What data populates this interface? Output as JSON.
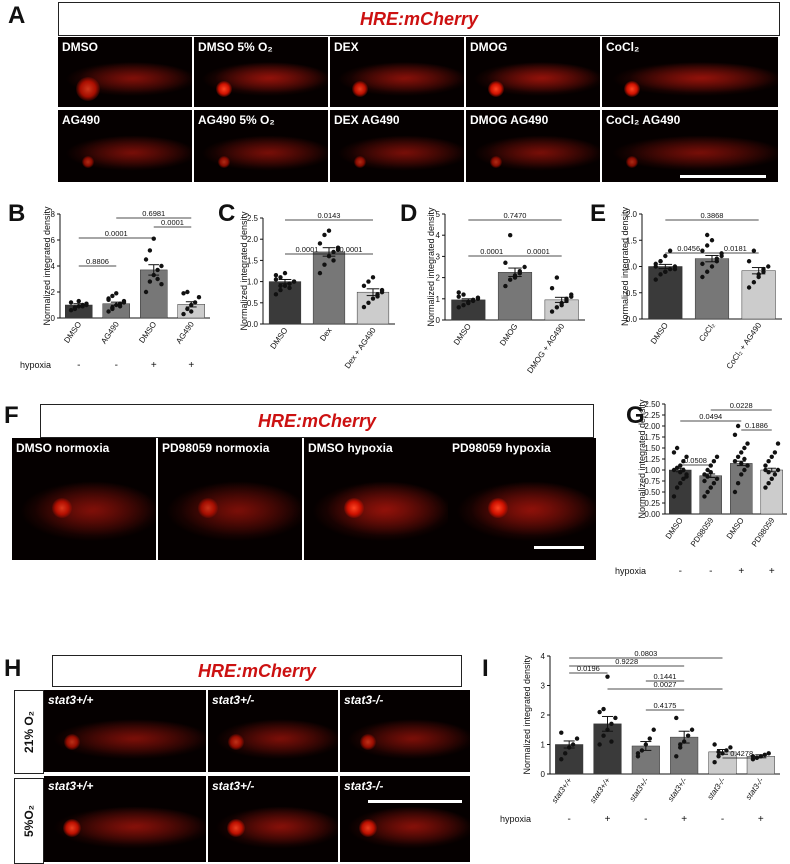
{
  "panel_letters": {
    "A": "A",
    "B": "B",
    "C": "C",
    "D": "D",
    "E": "E",
    "F": "F",
    "G": "G",
    "H": "H",
    "I": "I"
  },
  "reporter_title": "HRE:mCherry",
  "panel_A": {
    "row1": [
      "DMSO",
      "DMSO 5% O₂",
      "DEX",
      "DMOG",
      "CoCl₂"
    ],
    "row2": [
      "AG490",
      "AG490 5% O₂",
      "DEX AG490",
      "DMOG AG490",
      "CoCl₂ AG490"
    ]
  },
  "panel_F": {
    "labels": [
      "DMSO normoxia",
      "PD98059 normoxia",
      "DMSO hypoxia",
      "PD98059 hypoxia"
    ]
  },
  "panel_H": {
    "row_labels": [
      "21% O₂",
      "5%O₂"
    ],
    "genotypes": [
      "stat3+/+",
      "stat3+/-",
      "stat3-/-"
    ]
  },
  "hypoxia_label": "hypoxia",
  "ylabel": "Normalized integrated density",
  "chart_data": [
    {
      "id": "B",
      "type": "bar",
      "categories": [
        "DMSO",
        "AG490",
        "DMSO",
        "AG490"
      ],
      "hypoxia": [
        "-",
        "-",
        "+",
        "+"
      ],
      "values": [
        1.0,
        1.1,
        3.7,
        1.05
      ],
      "errors": [
        0.1,
        0.12,
        0.4,
        0.2
      ],
      "colors": [
        "#3a3a3a",
        "#777777",
        "#777777",
        "#cccccc"
      ],
      "ylim": [
        0,
        8
      ],
      "yticks": [
        0,
        2,
        4,
        6,
        8
      ],
      "points": [
        [
          0.6,
          0.8,
          0.9,
          1.0,
          1.1,
          1.2,
          0.7,
          1.3,
          0.9,
          1.0
        ],
        [
          0.5,
          0.8,
          1.0,
          1.1,
          1.3,
          1.5,
          1.7,
          1.9,
          0.9,
          1.2,
          1.4,
          0.7
        ],
        [
          2.0,
          2.8,
          3.3,
          3.7,
          4.0,
          4.5,
          5.2,
          6.1,
          3.0,
          2.6
        ],
        [
          0.3,
          0.7,
          1.0,
          1.2,
          1.6,
          1.9,
          2.0,
          0.5
        ]
      ],
      "comparisons": [
        {
          "a": 0,
          "b": 1,
          "label": "0.8806"
        },
        {
          "a": 0,
          "b": 2,
          "label": "0.0001"
        },
        {
          "a": 2,
          "b": 3,
          "label": "0.0001"
        },
        {
          "a": 1,
          "b": 3,
          "label": "0.6981"
        }
      ]
    },
    {
      "id": "C",
      "type": "bar",
      "categories": [
        "DMSO",
        "Dex",
        "Dex + AG490"
      ],
      "values": [
        1.0,
        1.7,
        0.75
      ],
      "errors": [
        0.05,
        0.1,
        0.08
      ],
      "colors": [
        "#3a3a3a",
        "#777777",
        "#cccccc"
      ],
      "ylim": [
        0,
        2.5
      ],
      "yticks": [
        0.0,
        0.5,
        1.0,
        1.5,
        2.0,
        2.5
      ],
      "points": [
        [
          0.7,
          0.8,
          0.9,
          0.95,
          1.0,
          1.05,
          1.1,
          1.2,
          0.85,
          1.0,
          1.15,
          0.9
        ],
        [
          1.2,
          1.4,
          1.6,
          1.7,
          1.8,
          1.9,
          2.1,
          2.2,
          1.5,
          1.75
        ],
        [
          0.4,
          0.5,
          0.6,
          0.7,
          0.8,
          0.9,
          1.0,
          1.1,
          0.65,
          0.75
        ]
      ],
      "comparisons": [
        {
          "a": 0,
          "b": 1,
          "label": "0.0001"
        },
        {
          "a": 1,
          "b": 2,
          "label": "0.0001"
        },
        {
          "a": 0,
          "b": 2,
          "label": "0.0143"
        }
      ]
    },
    {
      "id": "D",
      "type": "bar",
      "categories": [
        "DMSO",
        "DMOG",
        "DMOG + AG490"
      ],
      "values": [
        0.95,
        2.25,
        0.95
      ],
      "errors": [
        0.05,
        0.2,
        0.12
      ],
      "colors": [
        "#3a3a3a",
        "#777777",
        "#cccccc"
      ],
      "ylim": [
        0,
        5
      ],
      "yticks": [
        0,
        1,
        2,
        3,
        4,
        5
      ],
      "points": [
        [
          0.6,
          0.7,
          0.8,
          0.9,
          1.0,
          1.1,
          1.2,
          0.85,
          0.95,
          1.05,
          1.3
        ],
        [
          1.6,
          1.9,
          2.1,
          2.3,
          2.5,
          2.7,
          4.0,
          2.0,
          2.2
        ],
        [
          0.4,
          0.6,
          0.8,
          1.0,
          1.2,
          1.5,
          2.0,
          0.7,
          0.9,
          1.1
        ]
      ],
      "comparisons": [
        {
          "a": 0,
          "b": 1,
          "label": "0.0001"
        },
        {
          "a": 1,
          "b": 2,
          "label": "0.0001"
        },
        {
          "a": 0,
          "b": 2,
          "label": "0.7470"
        }
      ]
    },
    {
      "id": "E",
      "type": "bar",
      "categories": [
        "DMSO",
        "CoCl₂",
        "CoCl₂ + AG490"
      ],
      "values": [
        1.0,
        1.15,
        0.92
      ],
      "errors": [
        0.04,
        0.06,
        0.06
      ],
      "colors": [
        "#3a3a3a",
        "#777777",
        "#cccccc"
      ],
      "ylim": [
        0,
        2.0
      ],
      "yticks": [
        0.0,
        0.5,
        1.0,
        1.5,
        2.0
      ],
      "points": [
        [
          0.75,
          0.85,
          0.9,
          0.95,
          1.0,
          1.05,
          1.1,
          1.2,
          1.3,
          0.95,
          1.0,
          1.1,
          0.9
        ],
        [
          0.8,
          0.9,
          1.0,
          1.1,
          1.2,
          1.3,
          1.4,
          1.5,
          1.15,
          1.25,
          1.05,
          1.6
        ],
        [
          0.6,
          0.7,
          0.8,
          0.9,
          1.0,
          1.1,
          1.3,
          0.85,
          0.95
        ]
      ],
      "comparisons": [
        {
          "a": 0,
          "b": 1,
          "label": "0.0456"
        },
        {
          "a": 1,
          "b": 2,
          "label": "0.0181"
        },
        {
          "a": 0,
          "b": 2,
          "label": "0.3868"
        }
      ]
    },
    {
      "id": "G",
      "type": "bar",
      "categories": [
        "DMSO",
        "PD98059",
        "DMSO",
        "PD98059"
      ],
      "hypoxia": [
        "-",
        "-",
        "+",
        "+"
      ],
      "values": [
        1.0,
        0.87,
        1.15,
        1.0
      ],
      "errors": [
        0.04,
        0.04,
        0.05,
        0.04
      ],
      "colors": [
        "#3a3a3a",
        "#777777",
        "#777777",
        "#cccccc"
      ],
      "ylim": [
        0,
        2.5
      ],
      "yticks": [
        0.0,
        0.25,
        0.5,
        0.75,
        1.0,
        1.25,
        1.5,
        1.75,
        2.0,
        2.25,
        2.5
      ],
      "ytick_labels": [
        "0.00",
        "0.25",
        "0.50",
        "0.75",
        "1.00",
        "1.25",
        "1.50",
        "1.75",
        "2.00",
        "2.25",
        "2.50"
      ],
      "points": [
        [
          0.4,
          0.6,
          0.7,
          0.8,
          0.9,
          1.0,
          1.05,
          1.1,
          1.2,
          1.3,
          1.4,
          1.5,
          0.95,
          1.0,
          0.85
        ],
        [
          0.4,
          0.5,
          0.6,
          0.7,
          0.8,
          0.9,
          1.0,
          1.1,
          1.2,
          1.3,
          0.75,
          0.85,
          0.95
        ],
        [
          0.5,
          0.7,
          0.9,
          1.0,
          1.1,
          1.2,
          1.3,
          1.4,
          1.5,
          1.6,
          1.8,
          2.0,
          1.15,
          1.25
        ],
        [
          0.6,
          0.7,
          0.8,
          0.9,
          1.0,
          1.1,
          1.2,
          1.3,
          1.4,
          1.6,
          1.0,
          0.95
        ]
      ],
      "comparisons": [
        {
          "a": 0,
          "b": 1,
          "label": "0.0508"
        },
        {
          "a": 2,
          "b": 3,
          "label": "0.1886"
        },
        {
          "a": 0,
          "b": 2,
          "label": "0.0494"
        },
        {
          "a": 1,
          "b": 3,
          "label": "0.0228"
        }
      ]
    },
    {
      "id": "I",
      "type": "bar",
      "categories": [
        "stat3+/+",
        "stat3+/+",
        "stat3+/-",
        "stat3+/-",
        "stat3-/-",
        "stat3-/-"
      ],
      "hypoxia": [
        "-",
        "+",
        "-",
        "+",
        "-",
        "+"
      ],
      "values": [
        1.0,
        1.7,
        0.95,
        1.25,
        0.75,
        0.6
      ],
      "errors": [
        0.12,
        0.25,
        0.15,
        0.2,
        0.08,
        0.05
      ],
      "colors": [
        "#3a3a3a",
        "#3a3a3a",
        "#777777",
        "#777777",
        "#cccccc",
        "#cccccc"
      ],
      "ylim": [
        0,
        4
      ],
      "yticks": [
        0,
        1,
        2,
        3,
        4
      ],
      "points": [
        [
          0.5,
          0.7,
          0.9,
          1.0,
          1.2,
          1.4
        ],
        [
          1.0,
          1.3,
          1.5,
          1.7,
          1.9,
          2.1,
          2.2,
          3.3,
          1.1
        ],
        [
          0.6,
          0.8,
          1.0,
          1.2,
          1.5,
          0.7
        ],
        [
          0.6,
          0.9,
          1.1,
          1.3,
          1.5,
          1.9,
          1.0
        ],
        [
          0.4,
          0.6,
          0.7,
          0.8,
          0.9,
          1.0,
          0.75
        ],
        [
          0.5,
          0.55,
          0.6,
          0.65,
          0.7,
          0.6
        ]
      ],
      "comparisons": [
        {
          "a": 0,
          "b": 1,
          "label": "0.0196"
        },
        {
          "a": 2,
          "b": 3,
          "label": "0.1441"
        },
        {
          "a": 0,
          "b": 3,
          "label": "0.9228"
        },
        {
          "a": 0,
          "b": 4,
          "label": "0.0803"
        },
        {
          "a": 2,
          "b": 3,
          "label": "0.4175",
          "top": false
        },
        {
          "a": 1,
          "b": 4,
          "label": "0.0027"
        },
        {
          "a": 4,
          "b": 5,
          "label": "0.4278"
        }
      ]
    }
  ]
}
